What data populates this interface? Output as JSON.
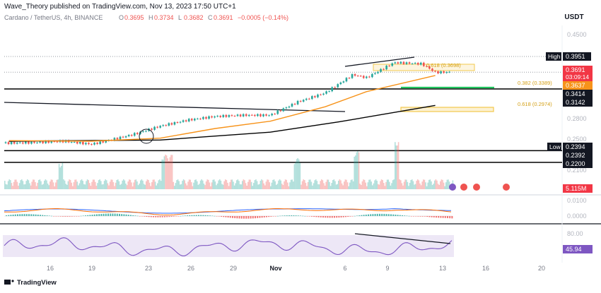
{
  "header": {
    "publisher_line": "Wave_Theory published on TradingView.com, Nov 13, 2023 17:50 UTC+1",
    "symbol_line": "Cardano / TetherUS, 4h, BINANCE",
    "ohlc": [
      {
        "label": "O",
        "value": "0.3695"
      },
      {
        "label": "H",
        "value": "0.3734"
      },
      {
        "label": "L",
        "value": "0.3682"
      },
      {
        "label": "C",
        "value": "0.3691"
      }
    ],
    "change": "−0.0005 (−0.14%)",
    "currency": "USDT"
  },
  "footer": {
    "brand": "TradingView"
  },
  "colors": {
    "up": "#26a69a",
    "down": "#ef5350",
    "ema": "#f7931a",
    "sma": "#000000",
    "fib": "#f2c94c",
    "green_line": "#22c55e",
    "rsi": "#7e57c2",
    "macd": "#2962ff",
    "signal": "#ff6d00",
    "price_badge": "#f23645",
    "ema_badge": "#f7931a"
  },
  "chart_data": [
    {
      "type": "line",
      "title": "Cardano / TetherUS, 4h, BINANCE",
      "x_ticks": [
        "16",
        "19",
        "23",
        "26",
        "29",
        "Nov",
        "6",
        "9",
        "13",
        "16",
        "20"
      ],
      "ylim": [
        0.19,
        0.47
      ],
      "y_ticks": [
        "0.4500",
        "0.2800",
        "0.2500",
        "0.2100"
      ],
      "close_series": [
        {
          "date": "Oct 13",
          "close": 0.252
        },
        {
          "date": "Oct 15",
          "close": 0.253
        },
        {
          "date": "Oct 17",
          "close": 0.255
        },
        {
          "date": "Oct 19",
          "close": 0.25
        },
        {
          "date": "Oct 20",
          "close": 0.255
        },
        {
          "date": "Oct 22",
          "close": 0.266
        },
        {
          "date": "Oct 24",
          "close": 0.28
        },
        {
          "date": "Oct 26",
          "close": 0.29
        },
        {
          "date": "Oct 28",
          "close": 0.296
        },
        {
          "date": "Oct 30",
          "close": 0.298
        },
        {
          "date": "Nov 1",
          "close": 0.298
        },
        {
          "date": "Nov 3",
          "close": 0.32
        },
        {
          "date": "Nov 5",
          "close": 0.335
        },
        {
          "date": "Nov 7",
          "close": 0.365
        },
        {
          "date": "Nov 8",
          "close": 0.36
        },
        {
          "date": "Nov 10",
          "close": 0.385
        },
        {
          "date": "Nov 12",
          "close": 0.383
        },
        {
          "date": "Nov 13",
          "close": 0.369
        }
      ],
      "ema50": [
        {
          "date": "Oct 13",
          "value": 0.256
        },
        {
          "date": "Oct 19",
          "value": 0.255
        },
        {
          "date": "Oct 24",
          "value": 0.26
        },
        {
          "date": "Oct 28",
          "value": 0.276
        },
        {
          "date": "Nov 1",
          "value": 0.288
        },
        {
          "date": "Nov 5",
          "value": 0.312
        },
        {
          "date": "Nov 8",
          "value": 0.337
        },
        {
          "date": "Nov 13",
          "value": 0.3637
        }
      ],
      "sma200": [
        {
          "date": "Oct 13",
          "value": 0.255
        },
        {
          "date": "Oct 24",
          "value": 0.257
        },
        {
          "date": "Nov 1",
          "value": 0.27
        },
        {
          "date": "Nov 6",
          "value": 0.287
        },
        {
          "date": "Nov 13",
          "value": 0.3142
        }
      ],
      "levels": [
        {
          "label": "High",
          "value": 0.3951
        },
        {
          "value": 0.3414
        },
        {
          "value": 0.3142
        },
        {
          "label": "Low",
          "value": 0.2394
        },
        {
          "value": 0.2392
        },
        {
          "value": 0.22
        }
      ],
      "fib_labels": [
        {
          "text": "0.618 (0.3698)",
          "value": 0.3698
        },
        {
          "text": "0.382 (0.3389)",
          "value": 0.3389
        },
        {
          "text": "0.618 (0.2974)",
          "value": 0.2974
        }
      ],
      "price_badge": {
        "value": "0.3691",
        "countdown": "03:09:14"
      },
      "ema_badge": "0.3637"
    },
    {
      "type": "area",
      "title": "Volume",
      "value_label": "5.115M"
    },
    {
      "type": "line",
      "title": "MACD",
      "y_ticks": [
        "0.0100",
        "0.0000"
      ]
    },
    {
      "type": "line",
      "title": "RSI",
      "y_ticks": [
        "80.00"
      ],
      "value_label": "45.94"
    }
  ]
}
